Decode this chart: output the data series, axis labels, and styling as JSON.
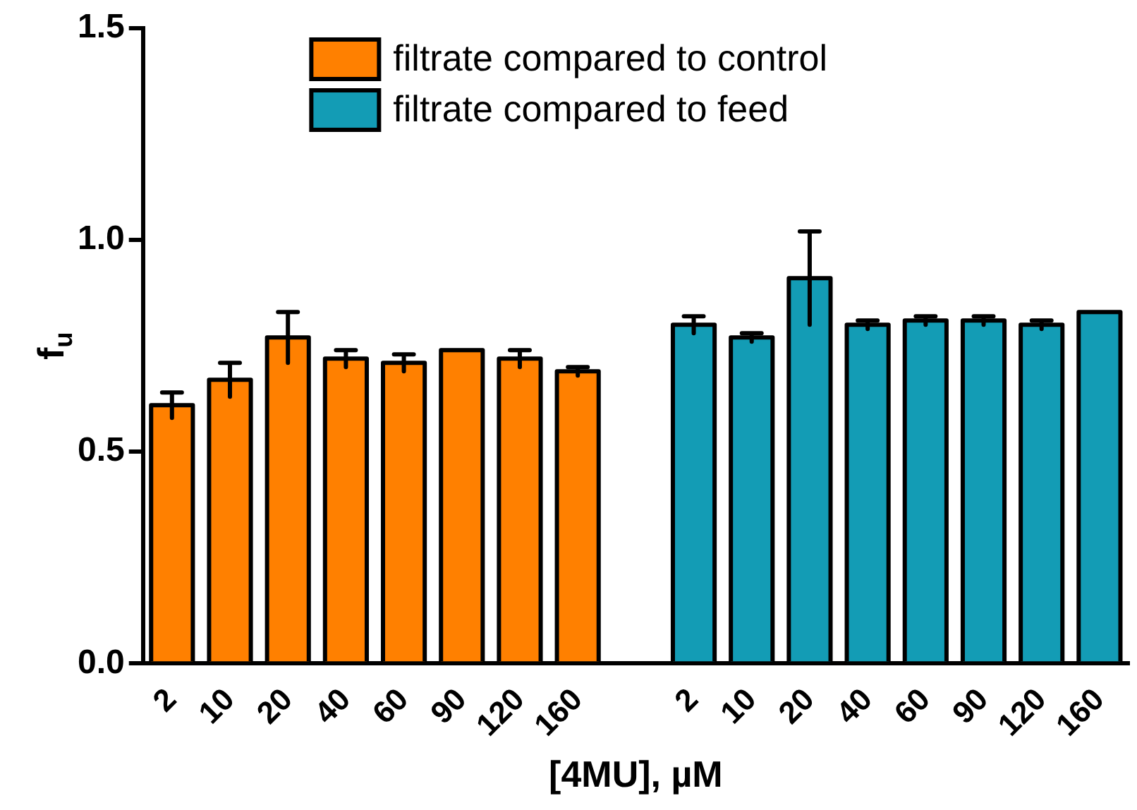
{
  "chart_data": {
    "type": "bar",
    "xlabel": "[4MU], µM",
    "ylabel": "f$_{u}$",
    "categories": [
      "2",
      "10",
      "20",
      "40",
      "60",
      "90",
      "120",
      "160",
      null,
      "2",
      "10",
      "20",
      "40",
      "60",
      "90",
      "120",
      "160"
    ],
    "series": [
      {
        "name": "filtrate compared to control",
        "color": "#ff8000",
        "values": [
          0.61,
          0.67,
          0.77,
          0.72,
          0.71,
          0.74,
          0.72,
          0.69,
          null,
          null,
          null,
          null,
          null,
          null,
          null,
          null,
          null
        ],
        "errors": [
          0.03,
          0.04,
          0.06,
          0.02,
          0.02,
          null,
          0.02,
          0.01,
          null,
          null,
          null,
          null,
          null,
          null,
          null,
          null,
          null
        ]
      },
      {
        "name": "filtrate compared to feed",
        "color": "#139cb5",
        "values": [
          null,
          null,
          null,
          null,
          null,
          null,
          null,
          null,
          null,
          0.8,
          0.77,
          0.91,
          0.8,
          0.81,
          0.81,
          0.8,
          0.83
        ],
        "errors": [
          null,
          null,
          null,
          null,
          null,
          null,
          null,
          null,
          null,
          0.02,
          0.01,
          0.11,
          0.01,
          0.01,
          0.01,
          0.01,
          null
        ]
      }
    ],
    "ylim": [
      0,
      1.5
    ],
    "yticks": [
      {
        "value": 0,
        "label": "0.0"
      },
      {
        "value": 0.5,
        "label": "0.5"
      },
      {
        "value": 1,
        "label": "1.0"
      },
      {
        "value": 1.5,
        "label": "1.5"
      }
    ],
    "grid": false,
    "legend": "top"
  }
}
